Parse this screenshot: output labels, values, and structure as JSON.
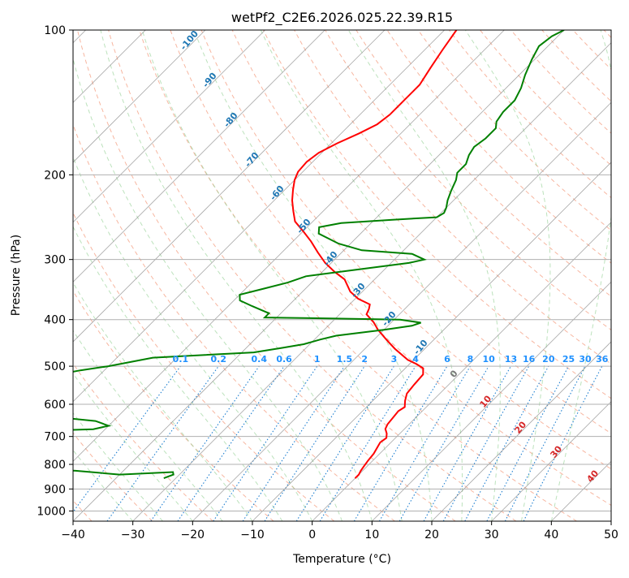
{
  "chart_data": {
    "type": "line",
    "title": "wetPf2_C2E6.2026.025.22.39.R15",
    "xlabel": "Temperature (°C)",
    "ylabel": "Pressure (hPa)",
    "xlim": [
      -40,
      50
    ],
    "ylim": [
      1050,
      100
    ],
    "y_scale": "log",
    "x_ticks": [
      -40,
      -30,
      -20,
      -10,
      0,
      10,
      20,
      30,
      40,
      50
    ],
    "y_ticks": [
      100,
      200,
      300,
      400,
      500,
      600,
      700,
      800,
      900,
      1000
    ],
    "grid": true,
    "dry_adiabat_labels": [
      "-100",
      "-90",
      "-80",
      "-70",
      "-60",
      "-50",
      "-40",
      "-30",
      "-20",
      "-10",
      "0",
      "10",
      "20",
      "30",
      "40"
    ],
    "mixing_ratio_labels": [
      "0.1",
      "0.2",
      "0.4",
      "0.6",
      "1",
      "1.5",
      "2",
      "3",
      "4",
      "6",
      "8",
      "10",
      "13",
      "16",
      "20",
      "25",
      "30",
      "36"
    ],
    "series": [
      {
        "role": "temperature",
        "color": "#ff0000",
        "points": [
          [
            0,
            855
          ],
          [
            0,
            840
          ],
          [
            -0.3,
            825
          ],
          [
            -0.5,
            810
          ],
          [
            -0.8,
            785
          ],
          [
            -1,
            760
          ],
          [
            -1.5,
            735
          ],
          [
            -1.8,
            720
          ],
          [
            -1.5,
            705
          ],
          [
            -2.2,
            690
          ],
          [
            -3.2,
            675
          ],
          [
            -3.6,
            660
          ],
          [
            -3.8,
            640
          ],
          [
            -4,
            620
          ],
          [
            -3.6,
            608
          ],
          [
            -4.6,
            590
          ],
          [
            -5.5,
            570
          ],
          [
            -5.8,
            545
          ],
          [
            -6,
            520
          ],
          [
            -7,
            505
          ],
          [
            -8.8,
            495
          ],
          [
            -11,
            485
          ],
          [
            -15,
            460
          ],
          [
            -18,
            440
          ],
          [
            -21,
            420
          ],
          [
            -23,
            405
          ],
          [
            -25.5,
            390
          ],
          [
            -26,
            380
          ],
          [
            -26.6,
            372
          ],
          [
            -29.5,
            362
          ],
          [
            -32,
            350
          ],
          [
            -35,
            330
          ],
          [
            -38,
            318
          ],
          [
            -41,
            305
          ],
          [
            -44,
            290
          ],
          [
            -47,
            275
          ],
          [
            -50,
            262
          ],
          [
            -53,
            250
          ],
          [
            -55,
            238
          ],
          [
            -57,
            226
          ],
          [
            -58.6,
            215
          ],
          [
            -60,
            205
          ],
          [
            -60.8,
            197
          ],
          [
            -61,
            188
          ],
          [
            -60.5,
            180
          ],
          [
            -59,
            172
          ],
          [
            -57,
            164
          ],
          [
            -55.5,
            157
          ],
          [
            -55,
            150
          ],
          [
            -55,
            140
          ],
          [
            -55,
            130
          ],
          [
            -56,
            120
          ],
          [
            -57,
            110
          ],
          [
            -58,
            100
          ]
        ]
      },
      {
        "role": "dewpoint",
        "color": "#008000",
        "points": [
          [
            -32,
            855
          ],
          [
            -31,
            840
          ],
          [
            -31.5,
            830
          ],
          [
            -40,
            840
          ],
          [
            -48,
            825
          ],
          [
            -60,
            810
          ],
          [
            -72,
            790
          ],
          [
            -80,
            770
          ],
          [
            -82,
            760
          ],
          [
            -85,
            755
          ],
          [
            -83,
            750
          ],
          [
            -85,
            748
          ],
          [
            -90,
            748
          ],
          [
            -100,
            745
          ],
          [
            -70,
            700
          ],
          [
            -62,
            682
          ],
          [
            -52,
            676
          ],
          [
            -50,
            665
          ],
          [
            -53,
            650
          ],
          [
            -65,
            630
          ],
          [
            -75,
            618
          ],
          [
            -79,
            608
          ],
          [
            -70,
            530
          ],
          [
            -64,
            510
          ],
          [
            -60,
            500
          ],
          [
            -57,
            490
          ],
          [
            -54,
            480
          ],
          [
            -38,
            468
          ],
          [
            -34,
            458
          ],
          [
            -31,
            450
          ],
          [
            -29,
            440
          ],
          [
            -27,
            432
          ],
          [
            -20,
            420
          ],
          [
            -16,
            412
          ],
          [
            -15,
            406
          ],
          [
            -19,
            400
          ],
          [
            -30,
            398
          ],
          [
            -42,
            396
          ],
          [
            -42,
            388
          ],
          [
            -46,
            375
          ],
          [
            -49,
            365
          ],
          [
            -50,
            355
          ],
          [
            -47,
            345
          ],
          [
            -44,
            335
          ],
          [
            -42,
            325
          ],
          [
            -37,
            318
          ],
          [
            -27,
            305
          ],
          [
            -25,
            300
          ],
          [
            -28,
            292
          ],
          [
            -37,
            287
          ],
          [
            -42,
            278
          ],
          [
            -47,
            265
          ],
          [
            -48,
            257
          ],
          [
            -45,
            252
          ],
          [
            -37,
            248
          ],
          [
            -30,
            245
          ],
          [
            -29.5,
            240
          ],
          [
            -30,
            234
          ],
          [
            -31,
            226
          ],
          [
            -32,
            216
          ],
          [
            -33,
            205
          ],
          [
            -34,
            198
          ],
          [
            -34,
            190
          ],
          [
            -35,
            182
          ],
          [
            -35.5,
            175
          ],
          [
            -35,
            168
          ],
          [
            -35,
            160
          ],
          [
            -36,
            155
          ],
          [
            -36.5,
            148
          ],
          [
            -36.5,
            140
          ],
          [
            -37.5,
            132
          ],
          [
            -39,
            124
          ],
          [
            -40.5,
            115
          ],
          [
            -41.5,
            108
          ],
          [
            -41,
            103
          ],
          [
            -40,
            100
          ]
        ]
      }
    ]
  }
}
